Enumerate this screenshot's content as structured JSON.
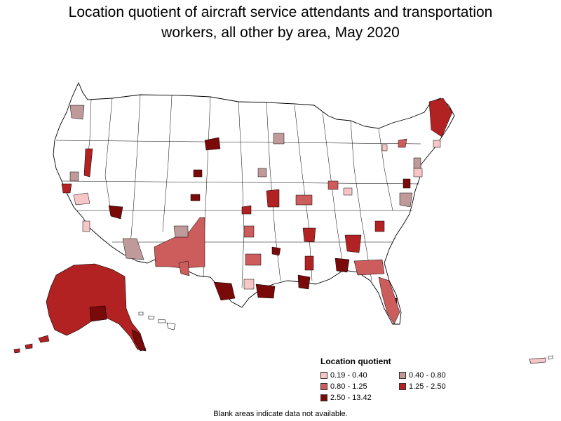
{
  "title_line1": "Location quotient of aircraft service attendants and transportation",
  "title_line2": "workers, all other by area, May 2020",
  "legend": {
    "title": "Location quotient",
    "items": [
      {
        "label": "0.19 - 0.40",
        "color": "#f7c6c6"
      },
      {
        "label": "0.40 - 0.80",
        "color": "#c09a9a"
      },
      {
        "label": "0.80 - 1.25",
        "color": "#cd5c5c"
      },
      {
        "label": "1.25 - 2.50",
        "color": "#b22222"
      },
      {
        "label": "2.50 - 13.42",
        "color": "#7a0a0a"
      }
    ]
  },
  "note": "Blank areas indicate data not available.",
  "map_colors": {
    "blank": "#ffffff",
    "border": "#000000"
  }
}
